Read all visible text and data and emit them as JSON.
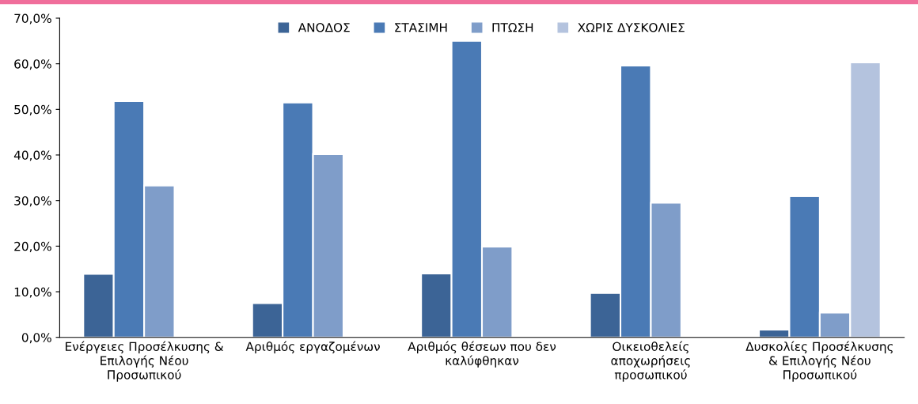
{
  "chart_data": {
    "type": "bar",
    "categories": [
      "Ενέργειες Προσέλκυσης &\nΕπιλογής Νέου\nΠροσωπικού",
      "Αριθμός εργαζομένων",
      "Αριθμός θέσεων που δεν\nκαλύφθηκαν",
      "Οικειοθελείς\nαποχωρήσεις\nπροσωπικού",
      "Δυσκολίες Προσέλκυσης\n& Επιλογής Νέου\nΠροσωπικού"
    ],
    "series": [
      {
        "name": "ΑΝΟΔΟΣ",
        "color": "#3c6496",
        "values": [
          13.9,
          7.5,
          14.0,
          9.7,
          1.7
        ]
      },
      {
        "name": "ΣΤΑΣΙΜΗ",
        "color": "#4a7ab5",
        "values": [
          51.8,
          51.5,
          65.0,
          59.6,
          31.0
        ]
      },
      {
        "name": "ΠΤΩΣΗ",
        "color": "#7f9dc9",
        "values": [
          33.3,
          40.2,
          19.9,
          29.5,
          5.4
        ]
      },
      {
        "name": "ΧΩΡΙΣ ΔΥΣΚΟΛΙΕΣ",
        "color": "#b4c3de",
        "values": [
          null,
          null,
          null,
          null,
          60.3
        ]
      }
    ],
    "ylim": [
      0,
      70
    ],
    "yticks": [
      {
        "value": 0,
        "label": "0,0%"
      },
      {
        "value": 10,
        "label": "10,0%"
      },
      {
        "value": 20,
        "label": "20,0%"
      },
      {
        "value": 30,
        "label": "30,0%"
      },
      {
        "value": 40,
        "label": "40,0%"
      },
      {
        "value": 50,
        "label": "50,0%"
      },
      {
        "value": 60,
        "label": "60,0%"
      },
      {
        "value": 70,
        "label": "70,0%"
      }
    ],
    "grid": false,
    "legend": "top"
  }
}
